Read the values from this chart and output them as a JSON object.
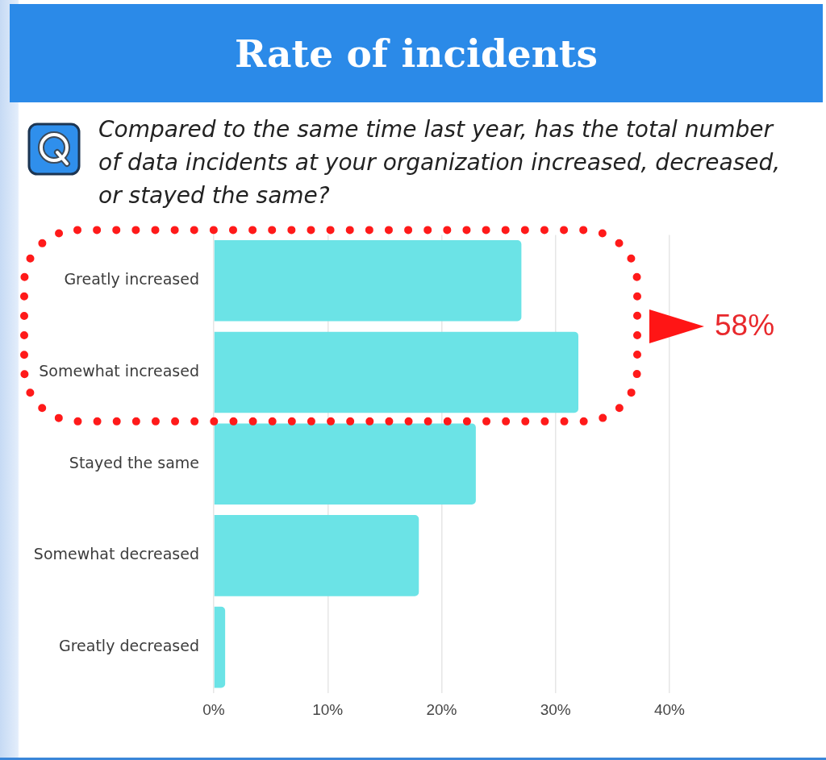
{
  "chart_data": {
    "type": "bar",
    "orientation": "horizontal",
    "title": "Rate of incidents",
    "subtitle": "Compared to the same time last year, has the total number of data incidents at your organization increased, decreased, or stayed the same?",
    "categories": [
      "Greatly increased",
      "Somewhat increased",
      "Stayed the same",
      "Somewhat decreased",
      "Greatly decreased"
    ],
    "values": [
      27,
      32,
      23,
      18,
      1
    ],
    "color": "#6be3e6",
    "xlim": [
      0,
      40
    ],
    "xticks": [
      {
        "value": 0,
        "label": "0%"
      },
      {
        "value": 10,
        "label": "10%"
      },
      {
        "value": 20,
        "label": "20%"
      },
      {
        "value": 30,
        "label": "30%"
      },
      {
        "value": 40,
        "label": "40%"
      }
    ],
    "grid": "x",
    "annotations": [
      "58%"
    ]
  }
}
